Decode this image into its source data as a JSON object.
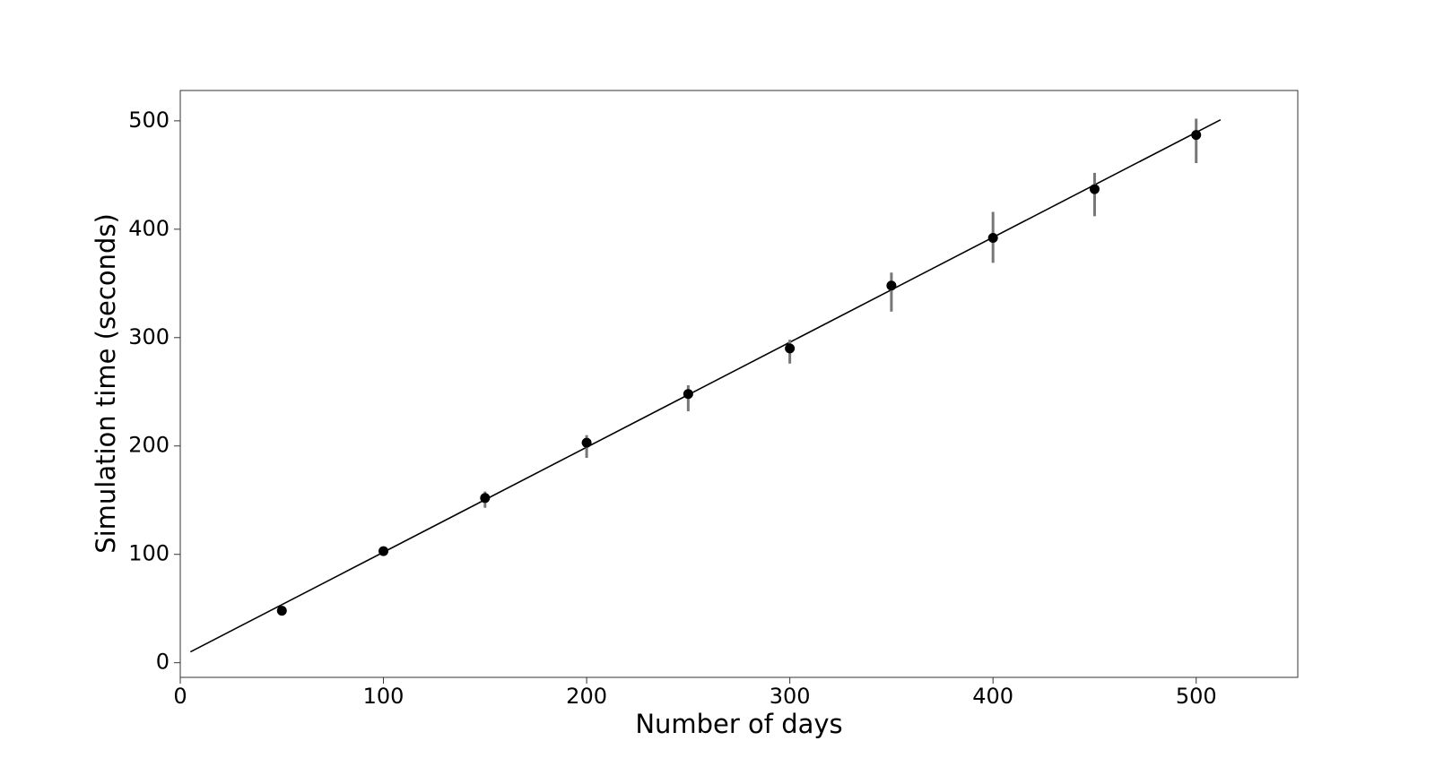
{
  "chart_data": {
    "type": "errorbar",
    "x_label": "Number of days",
    "y_label": "Simulation time (seconds)",
    "xlim": [
      0,
      550
    ],
    "ylim": [
      -13.5,
      528
    ],
    "xticks": [
      0,
      100,
      200,
      300,
      400,
      500
    ],
    "yticks": [
      0,
      100,
      200,
      300,
      400,
      500
    ],
    "series": [
      {
        "color": "#000000",
        "error_color": "#777777",
        "x": [
          50,
          100,
          150,
          200,
          250,
          300,
          350,
          400,
          450,
          500
        ],
        "values": [
          48,
          103,
          152,
          203,
          248,
          290,
          348,
          392,
          437,
          487
        ],
        "err_low": [
          2,
          2,
          9,
          14,
          16,
          14,
          24,
          23,
          25,
          26
        ],
        "err_high": [
          2,
          2,
          6,
          7,
          8,
          8,
          12,
          24,
          15,
          15
        ]
      }
    ],
    "fit_line": {
      "color": "#000000",
      "x": [
        5,
        512
      ],
      "y": [
        10,
        501
      ]
    }
  }
}
